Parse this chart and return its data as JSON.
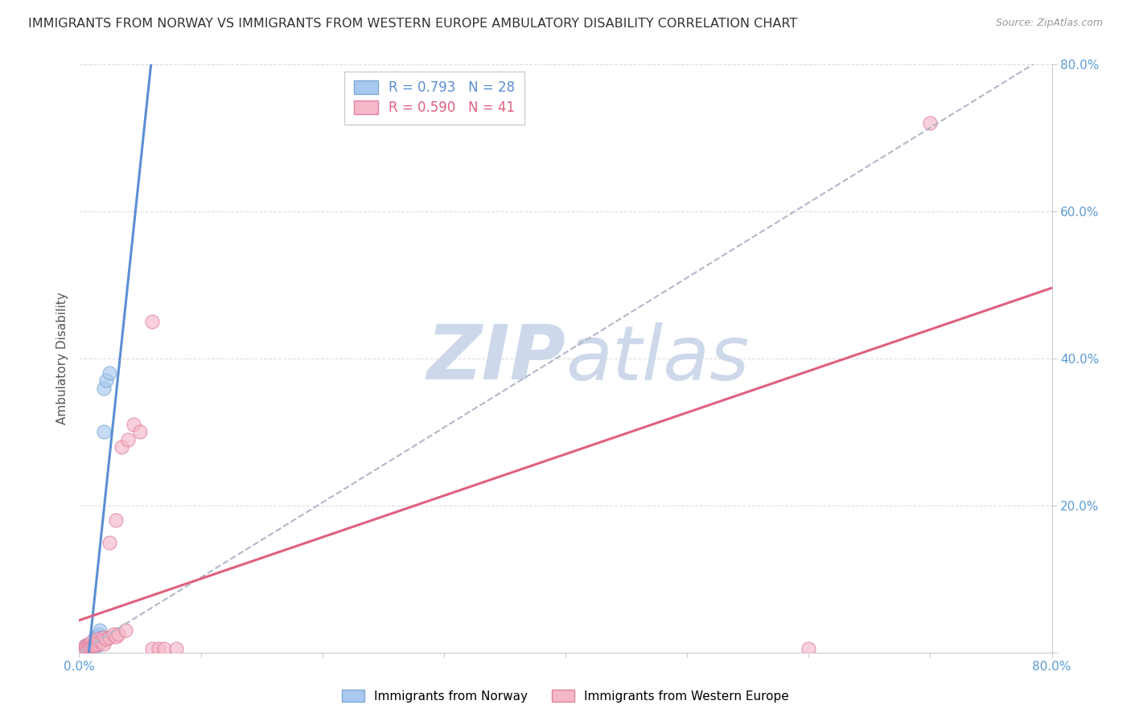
{
  "title": "IMMIGRANTS FROM NORWAY VS IMMIGRANTS FROM WESTERN EUROPE AMBULATORY DISABILITY CORRELATION CHART",
  "source": "Source: ZipAtlas.com",
  "ylabel": "Ambulatory Disability",
  "xlim": [
    0,
    0.8
  ],
  "ylim": [
    0,
    0.8
  ],
  "legend_blue_r": "0.793",
  "legend_blue_n": "28",
  "legend_pink_r": "0.590",
  "legend_pink_n": "41",
  "blue_scatter_color": "#a8c8f0",
  "blue_scatter_edge": "#7baad4",
  "pink_scatter_color": "#f5b8c8",
  "pink_scatter_edge": "#e080a0",
  "blue_line_color": "#5b8fd4",
  "pink_line_color": "#e06080",
  "ref_line_color": "#b0b8c8",
  "watermark_color": "#c8d4e8",
  "background_color": "#ffffff",
  "grid_color": "#dddddd",
  "tick_color": "#5b9bd5",
  "norway_x": [
    0.003,
    0.004,
    0.005,
    0.005,
    0.006,
    0.006,
    0.007,
    0.007,
    0.008,
    0.008,
    0.009,
    0.01,
    0.01,
    0.011,
    0.012,
    0.012,
    0.013,
    0.013,
    0.014,
    0.015,
    0.015,
    0.016,
    0.017,
    0.018,
    0.02,
    0.02,
    0.022,
    0.025
  ],
  "norway_y": [
    0.003,
    0.005,
    0.004,
    0.008,
    0.005,
    0.01,
    0.006,
    0.009,
    0.008,
    0.012,
    0.01,
    0.008,
    0.012,
    0.01,
    0.01,
    0.015,
    0.012,
    0.02,
    0.022,
    0.01,
    0.018,
    0.025,
    0.03,
    0.02,
    0.3,
    0.36,
    0.37,
    0.38
  ],
  "we_x": [
    0.002,
    0.003,
    0.004,
    0.005,
    0.005,
    0.006,
    0.006,
    0.007,
    0.008,
    0.008,
    0.009,
    0.01,
    0.01,
    0.011,
    0.012,
    0.013,
    0.015,
    0.015,
    0.016,
    0.018,
    0.02,
    0.02,
    0.022,
    0.025,
    0.025,
    0.028,
    0.03,
    0.03,
    0.032,
    0.035,
    0.038,
    0.04,
    0.045,
    0.05,
    0.06,
    0.06,
    0.065,
    0.07,
    0.08,
    0.6,
    0.7
  ],
  "we_y": [
    0.003,
    0.005,
    0.004,
    0.006,
    0.01,
    0.005,
    0.008,
    0.007,
    0.008,
    0.012,
    0.008,
    0.01,
    0.015,
    0.01,
    0.012,
    0.01,
    0.012,
    0.018,
    0.015,
    0.015,
    0.012,
    0.02,
    0.018,
    0.02,
    0.15,
    0.025,
    0.022,
    0.18,
    0.025,
    0.28,
    0.03,
    0.29,
    0.31,
    0.3,
    0.45,
    0.005,
    0.005,
    0.005,
    0.005,
    0.005,
    0.72
  ]
}
